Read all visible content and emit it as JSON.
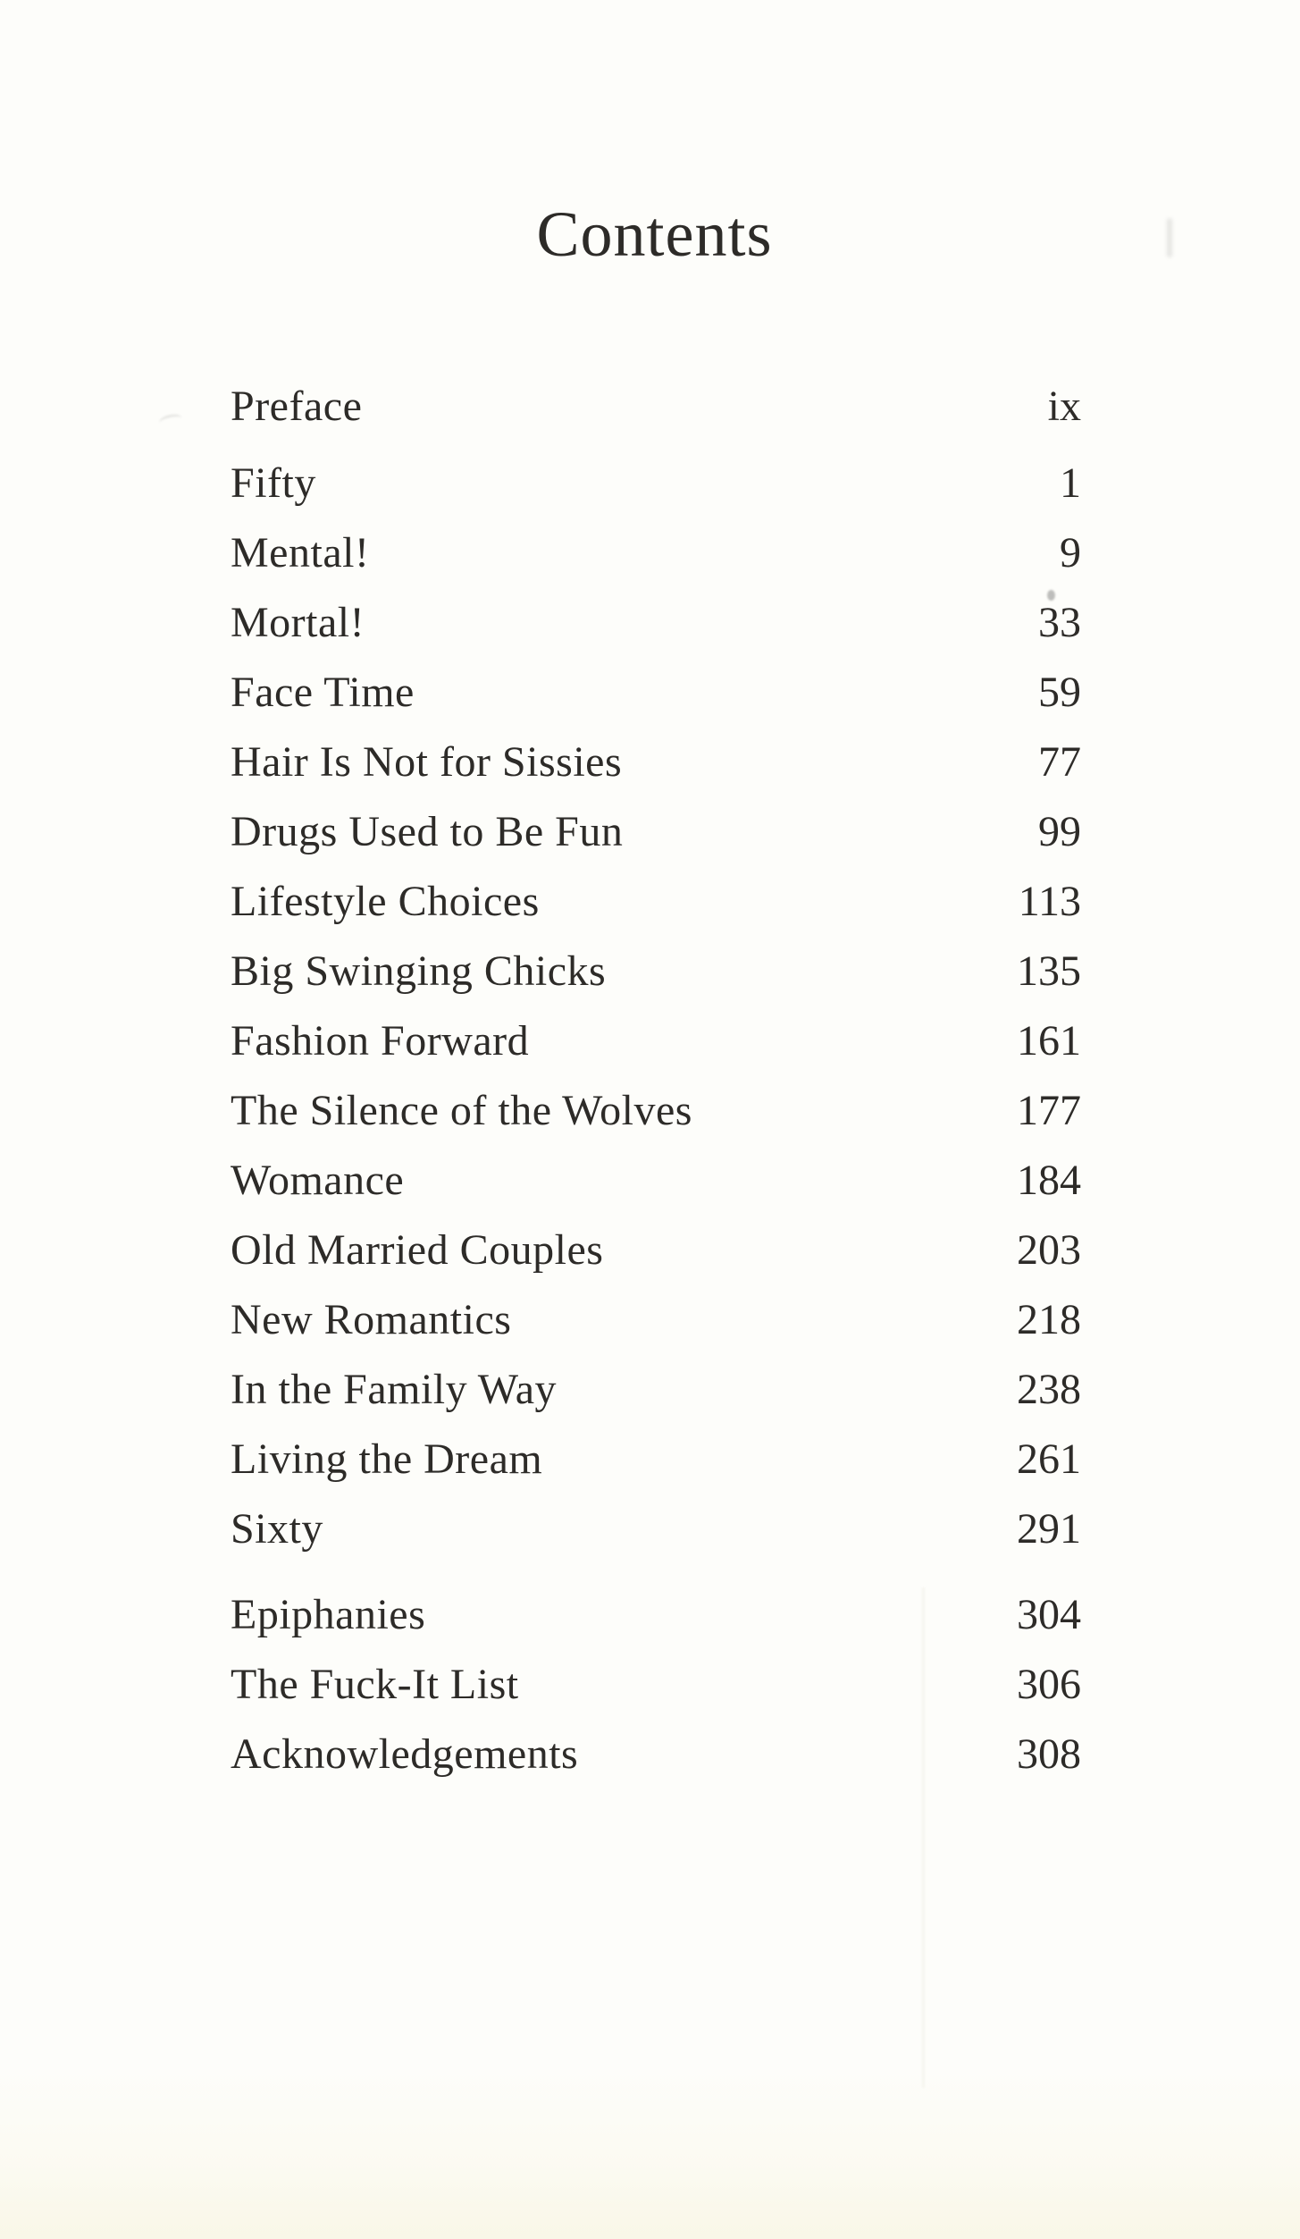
{
  "page": {
    "title": "Contents"
  },
  "toc": {
    "groups": [
      {
        "name": "front-matter",
        "entries": [
          {
            "label": "Preface",
            "page": "ix"
          }
        ]
      },
      {
        "name": "chapters",
        "entries": [
          {
            "label": "Fifty",
            "page": "1"
          },
          {
            "label": "Mental!",
            "page": "9"
          },
          {
            "label": "Mortal!",
            "page": "33"
          },
          {
            "label": "Face Time",
            "page": "59"
          },
          {
            "label": "Hair Is Not for Sissies",
            "page": "77"
          },
          {
            "label": "Drugs Used to Be Fun",
            "page": "99"
          },
          {
            "label": "Lifestyle Choices",
            "page": "113"
          },
          {
            "label": "Big Swinging Chicks",
            "page": "135"
          },
          {
            "label": "Fashion Forward",
            "page": "161"
          },
          {
            "label": "The Silence of the Wolves",
            "page": "177"
          },
          {
            "label": "Womance",
            "page": "184"
          },
          {
            "label": "Old Married Couples",
            "page": "203"
          },
          {
            "label": "New Romantics",
            "page": "218"
          },
          {
            "label": "In the Family Way",
            "page": "238"
          },
          {
            "label": "Living the Dream",
            "page": "261"
          },
          {
            "label": "Sixty",
            "page": "291"
          }
        ]
      },
      {
        "name": "back-matter",
        "entries": [
          {
            "label": "Epiphanies",
            "page": "304"
          },
          {
            "label": "The Fuck-It List",
            "page": "306"
          },
          {
            "label": "Acknowledgements",
            "page": "308"
          }
        ]
      }
    ]
  },
  "colors": {
    "ink": "#2d2b28",
    "paper": "#fdfdfa",
    "bottom_edge_tint": "#f5f1d5"
  }
}
